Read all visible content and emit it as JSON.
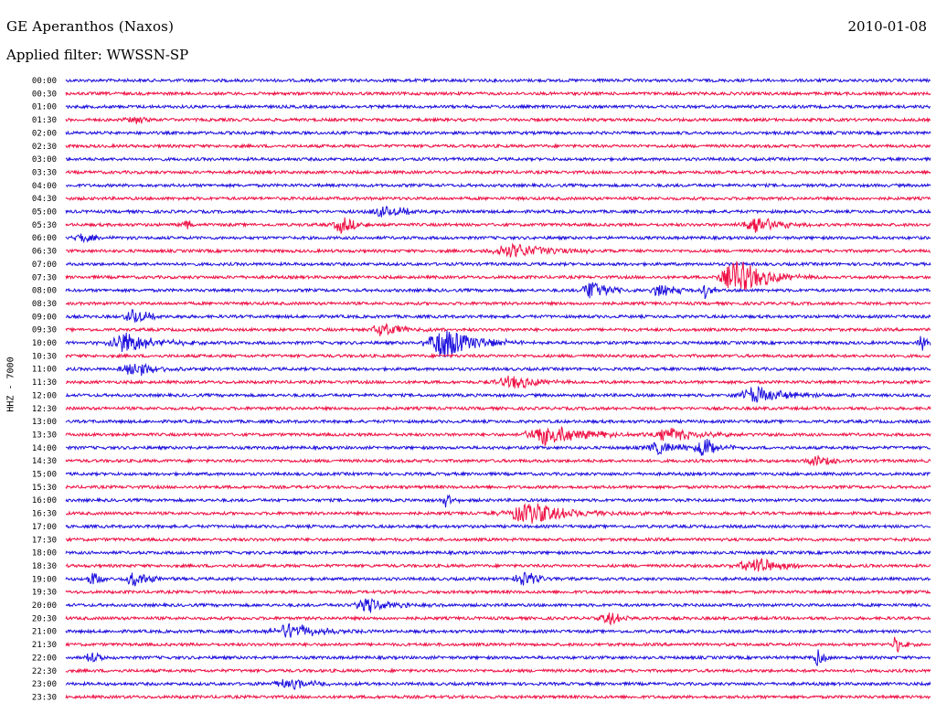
{
  "header": {
    "station": "GE Aperanthos (Naxos)",
    "date": "2010-01-08",
    "filter_label": "Applied filter: WWSSN-SP"
  },
  "channel_label": "HHZ - 7000",
  "colors": {
    "trace_a": "#1e10dd",
    "trace_b": "#ee1144",
    "text": "#000000",
    "background": "#ffffff"
  },
  "chart_data": {
    "type": "line",
    "title": "GE Aperanthos (Naxos)",
    "subtitle": "Applied filter: WWSSN-SP",
    "ylabel": "HHZ - 7000",
    "xlabel": "",
    "grid": false,
    "legend": "none",
    "row_labels": [
      "00:00",
      "00:30",
      "01:00",
      "01:30",
      "02:00",
      "02:30",
      "03:00",
      "03:30",
      "04:00",
      "04:30",
      "05:00",
      "05:30",
      "06:00",
      "06:30",
      "07:00",
      "07:30",
      "08:00",
      "08:30",
      "09:00",
      "09:30",
      "10:00",
      "10:30",
      "11:00",
      "11:30",
      "12:00",
      "12:30",
      "13:00",
      "13:30",
      "14:00",
      "14:30",
      "15:00",
      "15:30",
      "16:00",
      "16:30",
      "17:00",
      "17:30",
      "18:00",
      "18:30",
      "19:00",
      "19:30",
      "20:00",
      "20:30",
      "21:00",
      "21:30",
      "22:00",
      "22:30",
      "23:00",
      "23:30"
    ],
    "row_colors": [
      "trace_a",
      "trace_b"
    ],
    "events": [
      {
        "row": "01:30",
        "x": 0.08,
        "amp": 0.5,
        "dur": 0.02
      },
      {
        "row": "05:00",
        "x": 0.37,
        "amp": 0.6,
        "dur": 0.04
      },
      {
        "row": "05:30",
        "x": 0.14,
        "amp": 0.6,
        "dur": 0.01
      },
      {
        "row": "05:30",
        "x": 0.32,
        "amp": 1.0,
        "dur": 0.02
      },
      {
        "row": "05:30",
        "x": 0.8,
        "amp": 1.2,
        "dur": 0.03
      },
      {
        "row": "06:00",
        "x": 0.02,
        "amp": 0.6,
        "dur": 0.02
      },
      {
        "row": "06:30",
        "x": 0.52,
        "amp": 0.9,
        "dur": 0.05
      },
      {
        "row": "07:30",
        "x": 0.78,
        "amp": 2.0,
        "dur": 0.04
      },
      {
        "row": "08:00",
        "x": 0.61,
        "amp": 1.5,
        "dur": 0.02
      },
      {
        "row": "08:00",
        "x": 0.69,
        "amp": 1.0,
        "dur": 0.02
      },
      {
        "row": "08:00",
        "x": 0.74,
        "amp": 1.0,
        "dur": 0.01
      },
      {
        "row": "09:00",
        "x": 0.08,
        "amp": 0.9,
        "dur": 0.02
      },
      {
        "row": "09:30",
        "x": 0.37,
        "amp": 0.8,
        "dur": 0.03
      },
      {
        "row": "10:00",
        "x": 0.07,
        "amp": 1.2,
        "dur": 0.04
      },
      {
        "row": "10:00",
        "x": 0.44,
        "amp": 1.9,
        "dur": 0.04
      },
      {
        "row": "10:00",
        "x": 0.99,
        "amp": 0.9,
        "dur": 0.01
      },
      {
        "row": "11:00",
        "x": 0.08,
        "amp": 1.0,
        "dur": 0.03
      },
      {
        "row": "11:30",
        "x": 0.52,
        "amp": 0.8,
        "dur": 0.04
      },
      {
        "row": "12:00",
        "x": 0.8,
        "amp": 1.0,
        "dur": 0.04
      },
      {
        "row": "13:30",
        "x": 0.56,
        "amp": 1.3,
        "dur": 0.05
      },
      {
        "row": "13:30",
        "x": 0.7,
        "amp": 0.8,
        "dur": 0.04
      },
      {
        "row": "14:00",
        "x": 0.69,
        "amp": 0.8,
        "dur": 0.03
      },
      {
        "row": "14:00",
        "x": 0.74,
        "amp": 1.3,
        "dur": 0.02
      },
      {
        "row": "14:30",
        "x": 0.87,
        "amp": 0.7,
        "dur": 0.02
      },
      {
        "row": "16:00",
        "x": 0.44,
        "amp": 0.8,
        "dur": 0.01
      },
      {
        "row": "16:30",
        "x": 0.54,
        "amp": 1.2,
        "dur": 0.06
      },
      {
        "row": "18:30",
        "x": 0.8,
        "amp": 0.9,
        "dur": 0.04
      },
      {
        "row": "19:00",
        "x": 0.03,
        "amp": 1.0,
        "dur": 0.01
      },
      {
        "row": "19:00",
        "x": 0.08,
        "amp": 0.9,
        "dur": 0.02
      },
      {
        "row": "19:00",
        "x": 0.53,
        "amp": 1.0,
        "dur": 0.02
      },
      {
        "row": "20:00",
        "x": 0.35,
        "amp": 0.9,
        "dur": 0.03
      },
      {
        "row": "20:30",
        "x": 0.63,
        "amp": 0.8,
        "dur": 0.02
      },
      {
        "row": "21:00",
        "x": 0.26,
        "amp": 1.0,
        "dur": 0.04
      },
      {
        "row": "21:30",
        "x": 0.96,
        "amp": 1.0,
        "dur": 0.01
      },
      {
        "row": "22:00",
        "x": 0.03,
        "amp": 0.9,
        "dur": 0.01
      },
      {
        "row": "22:00",
        "x": 0.87,
        "amp": 1.0,
        "dur": 0.01
      },
      {
        "row": "23:00",
        "x": 0.26,
        "amp": 0.6,
        "dur": 0.04
      }
    ]
  }
}
